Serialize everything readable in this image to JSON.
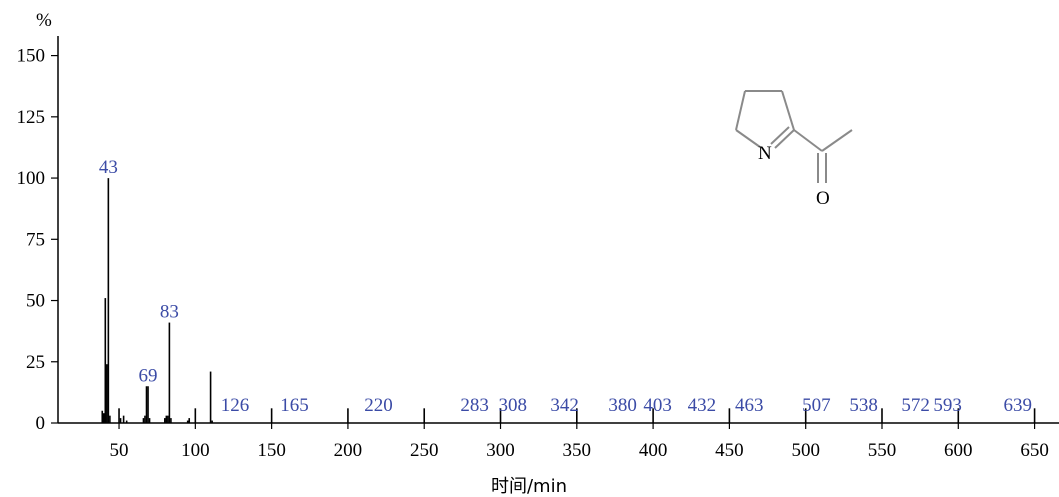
{
  "chart_data": {
    "type": "bar",
    "title": "",
    "xlabel": "时间/min",
    "ylabel": "%",
    "xlim": [
      10,
      666
    ],
    "ylim": [
      0,
      158
    ],
    "xticks": [
      50,
      100,
      150,
      200,
      250,
      300,
      350,
      400,
      450,
      500,
      550,
      600,
      650
    ],
    "yticks": [
      0,
      25,
      50,
      75,
      100,
      125,
      150
    ],
    "grid": false,
    "peaks": [
      {
        "x": 39,
        "y": 5
      },
      {
        "x": 40,
        "y": 4
      },
      {
        "x": 41,
        "y": 51
      },
      {
        "x": 42,
        "y": 24
      },
      {
        "x": 43,
        "y": 100
      },
      {
        "x": 44,
        "y": 3
      },
      {
        "x": 50,
        "y": 6
      },
      {
        "x": 51,
        "y": 2
      },
      {
        "x": 53,
        "y": 3
      },
      {
        "x": 55,
        "y": 1
      },
      {
        "x": 66,
        "y": 2
      },
      {
        "x": 67,
        "y": 3
      },
      {
        "x": 68,
        "y": 15
      },
      {
        "x": 69,
        "y": 15
      },
      {
        "x": 70,
        "y": 2
      },
      {
        "x": 80,
        "y": 2
      },
      {
        "x": 81,
        "y": 3
      },
      {
        "x": 82,
        "y": 3
      },
      {
        "x": 83,
        "y": 41
      },
      {
        "x": 84,
        "y": 2
      },
      {
        "x": 95,
        "y": 1
      },
      {
        "x": 96,
        "y": 2
      },
      {
        "x": 100,
        "y": 6
      },
      {
        "x": 110,
        "y": 21
      },
      {
        "x": 111,
        "y": 1
      },
      {
        "x": 150,
        "y": 6
      },
      {
        "x": 200,
        "y": 6
      },
      {
        "x": 250,
        "y": 6
      },
      {
        "x": 300,
        "y": 6
      },
      {
        "x": 350,
        "y": 6
      },
      {
        "x": 400,
        "y": 6
      },
      {
        "x": 450,
        "y": 6
      },
      {
        "x": 500,
        "y": 6
      },
      {
        "x": 550,
        "y": 6
      },
      {
        "x": 600,
        "y": 6
      },
      {
        "x": 650,
        "y": 6
      }
    ],
    "peak_labels": [
      {
        "x": 43,
        "y": 100,
        "text": "43"
      },
      {
        "x": 83,
        "y": 41,
        "text": "83"
      },
      {
        "x": 69,
        "y": 15,
        "text": "69"
      },
      {
        "x": 126,
        "y": 0,
        "text": "126"
      },
      {
        "x": 165,
        "y": 0,
        "text": "165"
      },
      {
        "x": 220,
        "y": 0,
        "text": "220"
      },
      {
        "x": 283,
        "y": 0,
        "text": "283"
      },
      {
        "x": 308,
        "y": 0,
        "text": "308"
      },
      {
        "x": 342,
        "y": 0,
        "text": "342"
      },
      {
        "x": 380,
        "y": 0,
        "text": "380"
      },
      {
        "x": 403,
        "y": 0,
        "text": "403"
      },
      {
        "x": 432,
        "y": 0,
        "text": "432"
      },
      {
        "x": 463,
        "y": 0,
        "text": "463"
      },
      {
        "x": 507,
        "y": 0,
        "text": "507"
      },
      {
        "x": 538,
        "y": 0,
        "text": "538"
      },
      {
        "x": 572,
        "y": 0,
        "text": "572"
      },
      {
        "x": 593,
        "y": 0,
        "text": "593"
      },
      {
        "x": 639,
        "y": 0,
        "text": "639"
      }
    ],
    "colors": {
      "bars": "#000000",
      "peak_labels": "#3b4ba6"
    }
  },
  "structure": {
    "nitrogen_label": "N",
    "oxygen_label": "O"
  }
}
